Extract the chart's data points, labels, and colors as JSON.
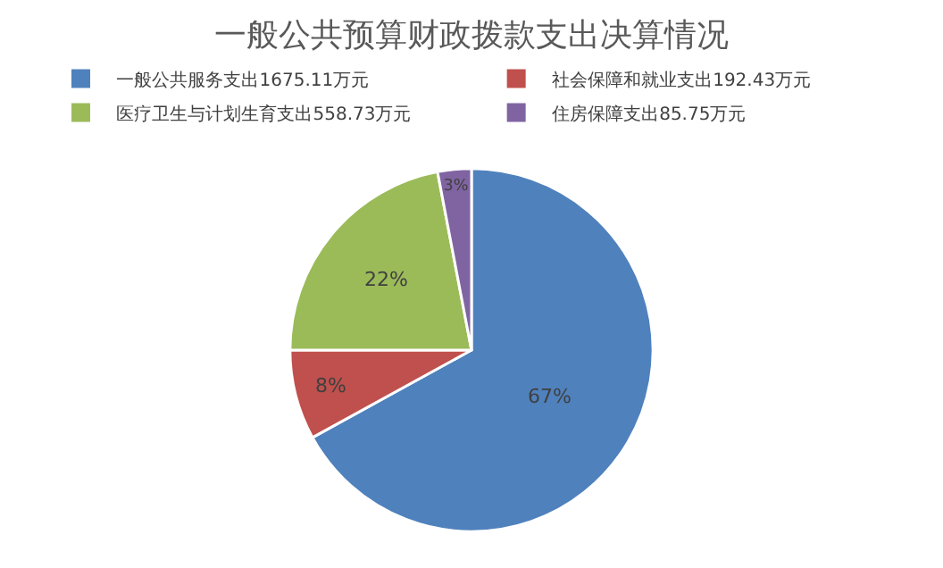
{
  "chart_data": {
    "type": "pie",
    "title": "一般公共预算财政拨款支出决算情况",
    "categories": [
      "一般公共服务支出1675.11万元",
      "社会保障和就业支出192.43万元",
      "医疗卫生与计划生育支出558.73万元",
      "住房保障支出85.75万元"
    ],
    "values": [
      67,
      8,
      22,
      3
    ],
    "value_labels": [
      "67%",
      "8%",
      "22%",
      "3%"
    ],
    "colors": [
      "#4f81bd",
      "#c0504d",
      "#9bbb59",
      "#8064a2"
    ],
    "legend": "top"
  }
}
